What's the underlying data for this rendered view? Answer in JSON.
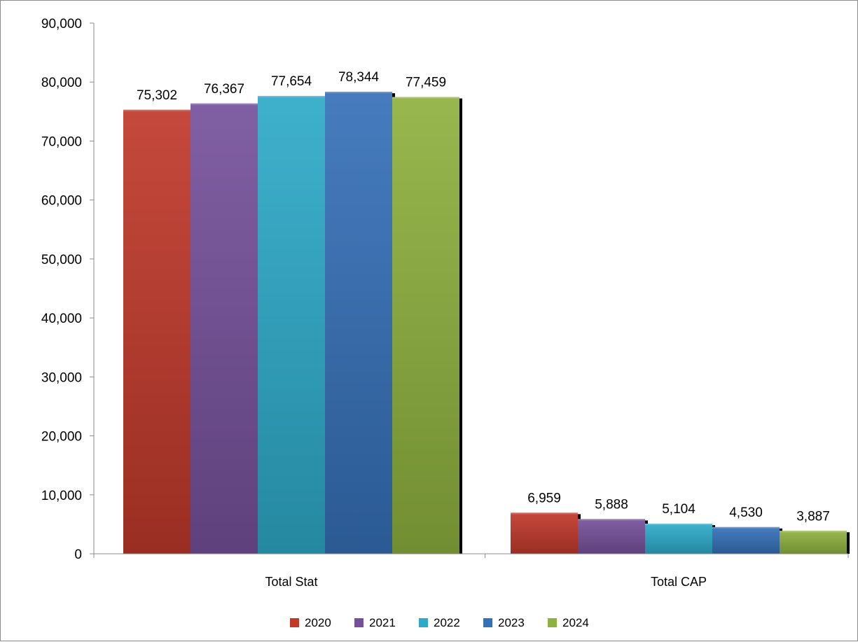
{
  "chart_data": {
    "type": "bar",
    "title": "",
    "xlabel": "",
    "ylabel": "",
    "categories": [
      "Total Stat",
      "Total CAP"
    ],
    "series": [
      {
        "name": "2020",
        "values": [
          75302,
          6959
        ],
        "labels": [
          "75,302",
          "6,959"
        ],
        "color": "#c0392b"
      },
      {
        "name": "2021",
        "values": [
          76367,
          5888
        ],
        "labels": [
          "76,367",
          "5,888"
        ],
        "color": "#76519b"
      },
      {
        "name": "2022",
        "values": [
          77654,
          5104
        ],
        "labels": [
          "77,654",
          "5,104"
        ],
        "color": "#2eaac9"
      },
      {
        "name": "2023",
        "values": [
          78344,
          4530
        ],
        "labels": [
          "78,344",
          "4,530"
        ],
        "color": "#3671b8"
      },
      {
        "name": "2024",
        "values": [
          77459,
          3887
        ],
        "labels": [
          "77,459",
          "3,887"
        ],
        "color": "#8fb13f"
      }
    ],
    "ylim": [
      0,
      90000
    ],
    "yticks": [
      0,
      10000,
      20000,
      30000,
      40000,
      50000,
      60000,
      70000,
      80000,
      90000
    ],
    "ytick_labels": [
      "0",
      "10,000",
      "20,000",
      "30,000",
      "40,000",
      "50,000",
      "60,000",
      "70,000",
      "80,000",
      "90,000"
    ],
    "grid": false,
    "legend_position": "bottom"
  }
}
